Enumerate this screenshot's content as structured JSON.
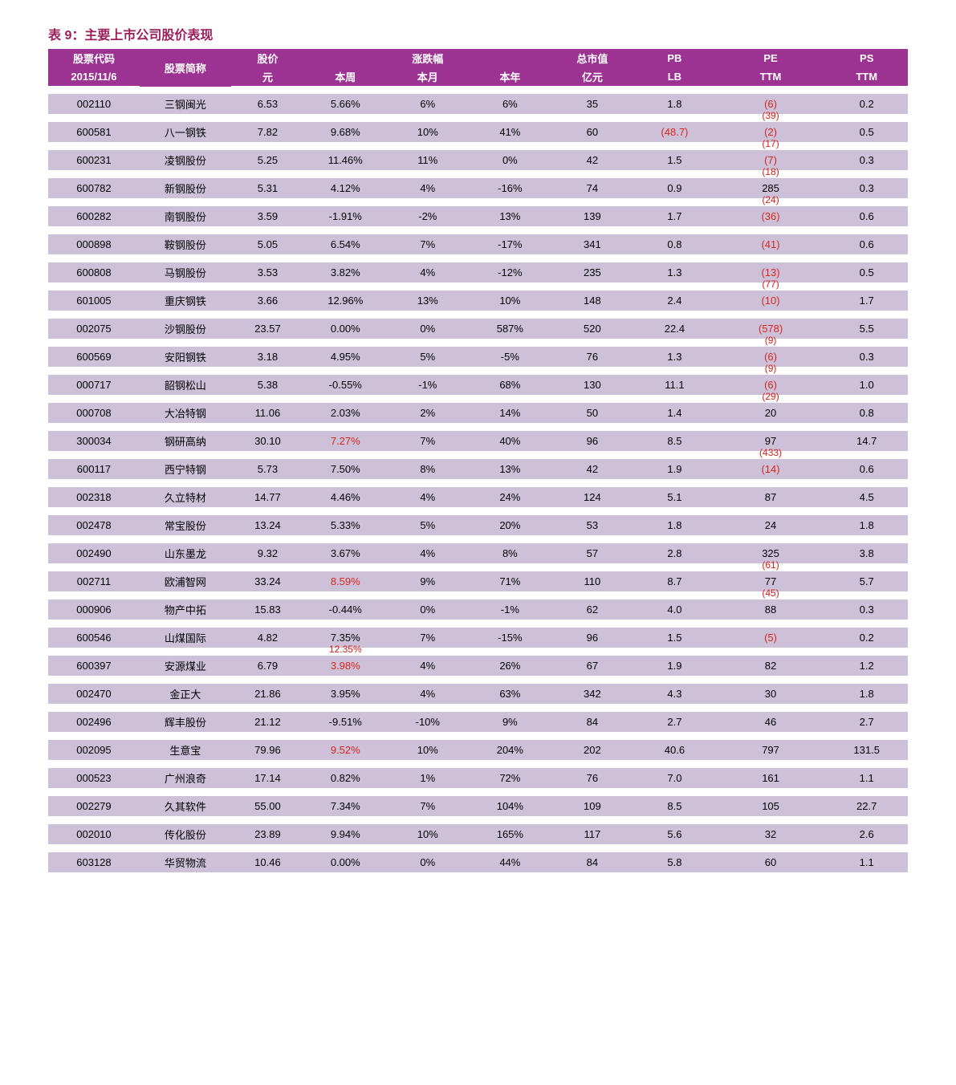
{
  "title": "表 9：主要上市公司股价表现",
  "header": {
    "row1": {
      "code": "股票代码",
      "name": "股票简称",
      "price": "股价",
      "change_group": "涨跌幅",
      "mktcap": "总市值",
      "pb": "PB",
      "pe": "PE",
      "ps": "PS"
    },
    "row2": {
      "code": "2015/11/6",
      "name": "",
      "price": "元",
      "week": "本周",
      "month": "本月",
      "year": "本年",
      "mktcap": "亿元",
      "pb": "LB",
      "pe": "TTM",
      "ps": "TTM"
    }
  },
  "colors": {
    "header_bg": "#9c3292",
    "header_fg": "#ffffff",
    "row_bg": "#cdc1d9",
    "title_color": "#9c1f5c",
    "negative_color": "#d8261c",
    "background": "#ffffff"
  },
  "columns": [
    "code",
    "name",
    "price",
    "week",
    "month",
    "year",
    "mktcap",
    "pb",
    "pe",
    "ps"
  ],
  "rows": [
    {
      "code": "002110",
      "name": "三钢闽光",
      "price": "6.53",
      "week": "5.66%",
      "month": "6%",
      "year": "6%",
      "mktcap": "35",
      "pb": "1.8",
      "pe": "(6)",
      "pe_neg": true,
      "ps": "0.2",
      "pe_above": ""
    },
    {
      "code": "600581",
      "name": "八一钢铁",
      "price": "7.82",
      "week": "9.68%",
      "month": "10%",
      "year": "41%",
      "mktcap": "60",
      "pb": "(48.7)",
      "pb_neg": true,
      "pe": "(2)",
      "pe_neg": true,
      "ps": "0.5",
      "pe_above": "(39)"
    },
    {
      "code": "600231",
      "name": "凌钢股份",
      "price": "5.25",
      "week": "11.46%",
      "month": "11%",
      "year": "0%",
      "mktcap": "42",
      "pb": "1.5",
      "pe": "(7)",
      "pe_neg": true,
      "ps": "0.3",
      "pe_above": "(17)"
    },
    {
      "code": "600782",
      "name": "新钢股份",
      "price": "5.31",
      "week": "4.12%",
      "month": "4%",
      "year": "-16%",
      "mktcap": "74",
      "pb": "0.9",
      "pe": "285",
      "ps": "0.3",
      "pe_above": "(18)"
    },
    {
      "code": "600282",
      "name": "南钢股份",
      "price": "3.59",
      "week": "-1.91%",
      "month": "-2%",
      "year": "13%",
      "mktcap": "139",
      "pb": "1.7",
      "pe": "(36)",
      "pe_neg": true,
      "ps": "0.6",
      "pe_above": "(24)"
    },
    {
      "code": "000898",
      "name": "鞍钢股份",
      "price": "5.05",
      "week": "6.54%",
      "month": "7%",
      "year": "-17%",
      "mktcap": "341",
      "pb": "0.8",
      "pe": "(41)",
      "pe_neg": true,
      "ps": "0.6",
      "pe_above": ""
    },
    {
      "code": "600808",
      "name": "马钢股份",
      "price": "3.53",
      "week": "3.82%",
      "month": "4%",
      "year": "-12%",
      "mktcap": "235",
      "pb": "1.3",
      "pe": "(13)",
      "pe_neg": true,
      "ps": "0.5",
      "pe_above": ""
    },
    {
      "code": "601005",
      "name": "重庆钢铁",
      "price": "3.66",
      "week": "12.96%",
      "month": "13%",
      "year": "10%",
      "mktcap": "148",
      "pb": "2.4",
      "pe": "(10)",
      "pe_neg": true,
      "ps": "1.7",
      "pe_above": "(77)"
    },
    {
      "code": "002075",
      "name": "沙钢股份",
      "price": "23.57",
      "week": "0.00%",
      "month": "0%",
      "year": "587%",
      "mktcap": "520",
      "pb": "22.4",
      "pe": "(578)",
      "pe_neg": true,
      "ps": "5.5",
      "pe_above": ""
    },
    {
      "code": "600569",
      "name": "安阳钢铁",
      "price": "3.18",
      "week": "4.95%",
      "month": "5%",
      "year": "-5%",
      "mktcap": "76",
      "pb": "1.3",
      "pe": "(6)",
      "pe_neg": true,
      "ps": "0.3",
      "pe_above": "(9)"
    },
    {
      "code": "000717",
      "name": "韶钢松山",
      "price": "5.38",
      "week": "-0.55%",
      "month": "-1%",
      "year": "68%",
      "mktcap": "130",
      "pb": "11.1",
      "pe": "(6)",
      "pe_neg": true,
      "ps": "1.0",
      "pe_above": "(9)"
    },
    {
      "code": "000708",
      "name": "大冶特钢",
      "price": "11.06",
      "week": "2.03%",
      "month": "2%",
      "year": "14%",
      "mktcap": "50",
      "pb": "1.4",
      "pe": "20",
      "ps": "0.8",
      "pe_above": "(29)"
    },
    {
      "code": "300034",
      "name": "钢研高纳",
      "price": "30.10",
      "week": "7.27%",
      "week_red": true,
      "month": "7%",
      "year": "40%",
      "mktcap": "96",
      "pb": "8.5",
      "pe": "97",
      "ps": "14.7",
      "pe_above": ""
    },
    {
      "code": "600117",
      "name": "西宁特钢",
      "price": "5.73",
      "week": "7.50%",
      "month": "8%",
      "year": "13%",
      "mktcap": "42",
      "pb": "1.9",
      "pe": "(14)",
      "pe_neg": true,
      "ps": "0.6",
      "pe_above": "(433)"
    },
    {
      "code": "002318",
      "name": "久立特材",
      "price": "14.77",
      "week": "4.46%",
      "month": "4%",
      "year": "24%",
      "mktcap": "124",
      "pb": "5.1",
      "pe": "87",
      "ps": "4.5",
      "pe_above": ""
    },
    {
      "code": "002478",
      "name": "常宝股份",
      "price": "13.24",
      "week": "5.33%",
      "month": "5%",
      "year": "20%",
      "mktcap": "53",
      "pb": "1.8",
      "pe": "24",
      "ps": "1.8",
      "pe_above": ""
    },
    {
      "code": "002490",
      "name": "山东墨龙",
      "price": "9.32",
      "week": "3.67%",
      "month": "4%",
      "year": "8%",
      "mktcap": "57",
      "pb": "2.8",
      "pe": "325",
      "ps": "3.8",
      "pe_above": ""
    },
    {
      "code": "002711",
      "name": "欧浦智网",
      "price": "33.24",
      "week": "8.59%",
      "week_red": true,
      "month": "9%",
      "year": "71%",
      "mktcap": "110",
      "pb": "8.7",
      "pe": "77",
      "ps": "5.7",
      "pe_above": "(61)"
    },
    {
      "code": "000906",
      "name": "物产中拓",
      "price": "15.83",
      "week": "-0.44%",
      "month": "0%",
      "year": "-1%",
      "mktcap": "62",
      "pb": "4.0",
      "pe": "88",
      "ps": "0.3",
      "pe_above": "(45)"
    },
    {
      "code": "600546",
      "name": "山煤国际",
      "price": "4.82",
      "week": "7.35%",
      "month": "7%",
      "year": "-15%",
      "mktcap": "96",
      "pb": "1.5",
      "pe": "(5)",
      "pe_neg": true,
      "ps": "0.2",
      "pe_above": ""
    },
    {
      "code": "600397",
      "name": "安源煤业",
      "price": "6.79",
      "week": "3.98%",
      "week_red": true,
      "month": "4%",
      "year": "26%",
      "mktcap": "67",
      "pb": "1.9",
      "pe": "82",
      "ps": "1.2",
      "week_above": "12.35%"
    },
    {
      "code": "002470",
      "name": "金正大",
      "price": "21.86",
      "week": "3.95%",
      "month": "4%",
      "year": "63%",
      "mktcap": "342",
      "pb": "4.3",
      "pe": "30",
      "ps": "1.8",
      "pe_above": ""
    },
    {
      "code": "002496",
      "name": "辉丰股份",
      "price": "21.12",
      "week": "-9.51%",
      "month": "-10%",
      "year": "9%",
      "mktcap": "84",
      "pb": "2.7",
      "pe": "46",
      "ps": "2.7",
      "pe_above": ""
    },
    {
      "code": "002095",
      "name": "生意宝",
      "price": "79.96",
      "week": "9.52%",
      "week_red": true,
      "month": "10%",
      "year": "204%",
      "mktcap": "202",
      "pb": "40.6",
      "pe": "797",
      "ps": "131.5",
      "pe_above": ""
    },
    {
      "code": "000523",
      "name": "广州浪奇",
      "price": "17.14",
      "week": "0.82%",
      "month": "1%",
      "year": "72%",
      "mktcap": "76",
      "pb": "7.0",
      "pe": "161",
      "ps": "1.1",
      "pe_above": ""
    },
    {
      "code": "002279",
      "name": "久其软件",
      "price": "55.00",
      "week": "7.34%",
      "month": "7%",
      "year": "104%",
      "mktcap": "109",
      "pb": "8.5",
      "pe": "105",
      "ps": "22.7",
      "pe_above": ""
    },
    {
      "code": "002010",
      "name": "传化股份",
      "price": "23.89",
      "week": "9.94%",
      "month": "10%",
      "year": "165%",
      "mktcap": "117",
      "pb": "5.6",
      "pe": "32",
      "ps": "2.6",
      "pe_above": ""
    },
    {
      "code": "603128",
      "name": "华贸物流",
      "price": "10.46",
      "week": "0.00%",
      "month": "0%",
      "year": "44%",
      "mktcap": "84",
      "pb": "5.8",
      "pe": "60",
      "ps": "1.1",
      "pe_above": ""
    }
  ]
}
